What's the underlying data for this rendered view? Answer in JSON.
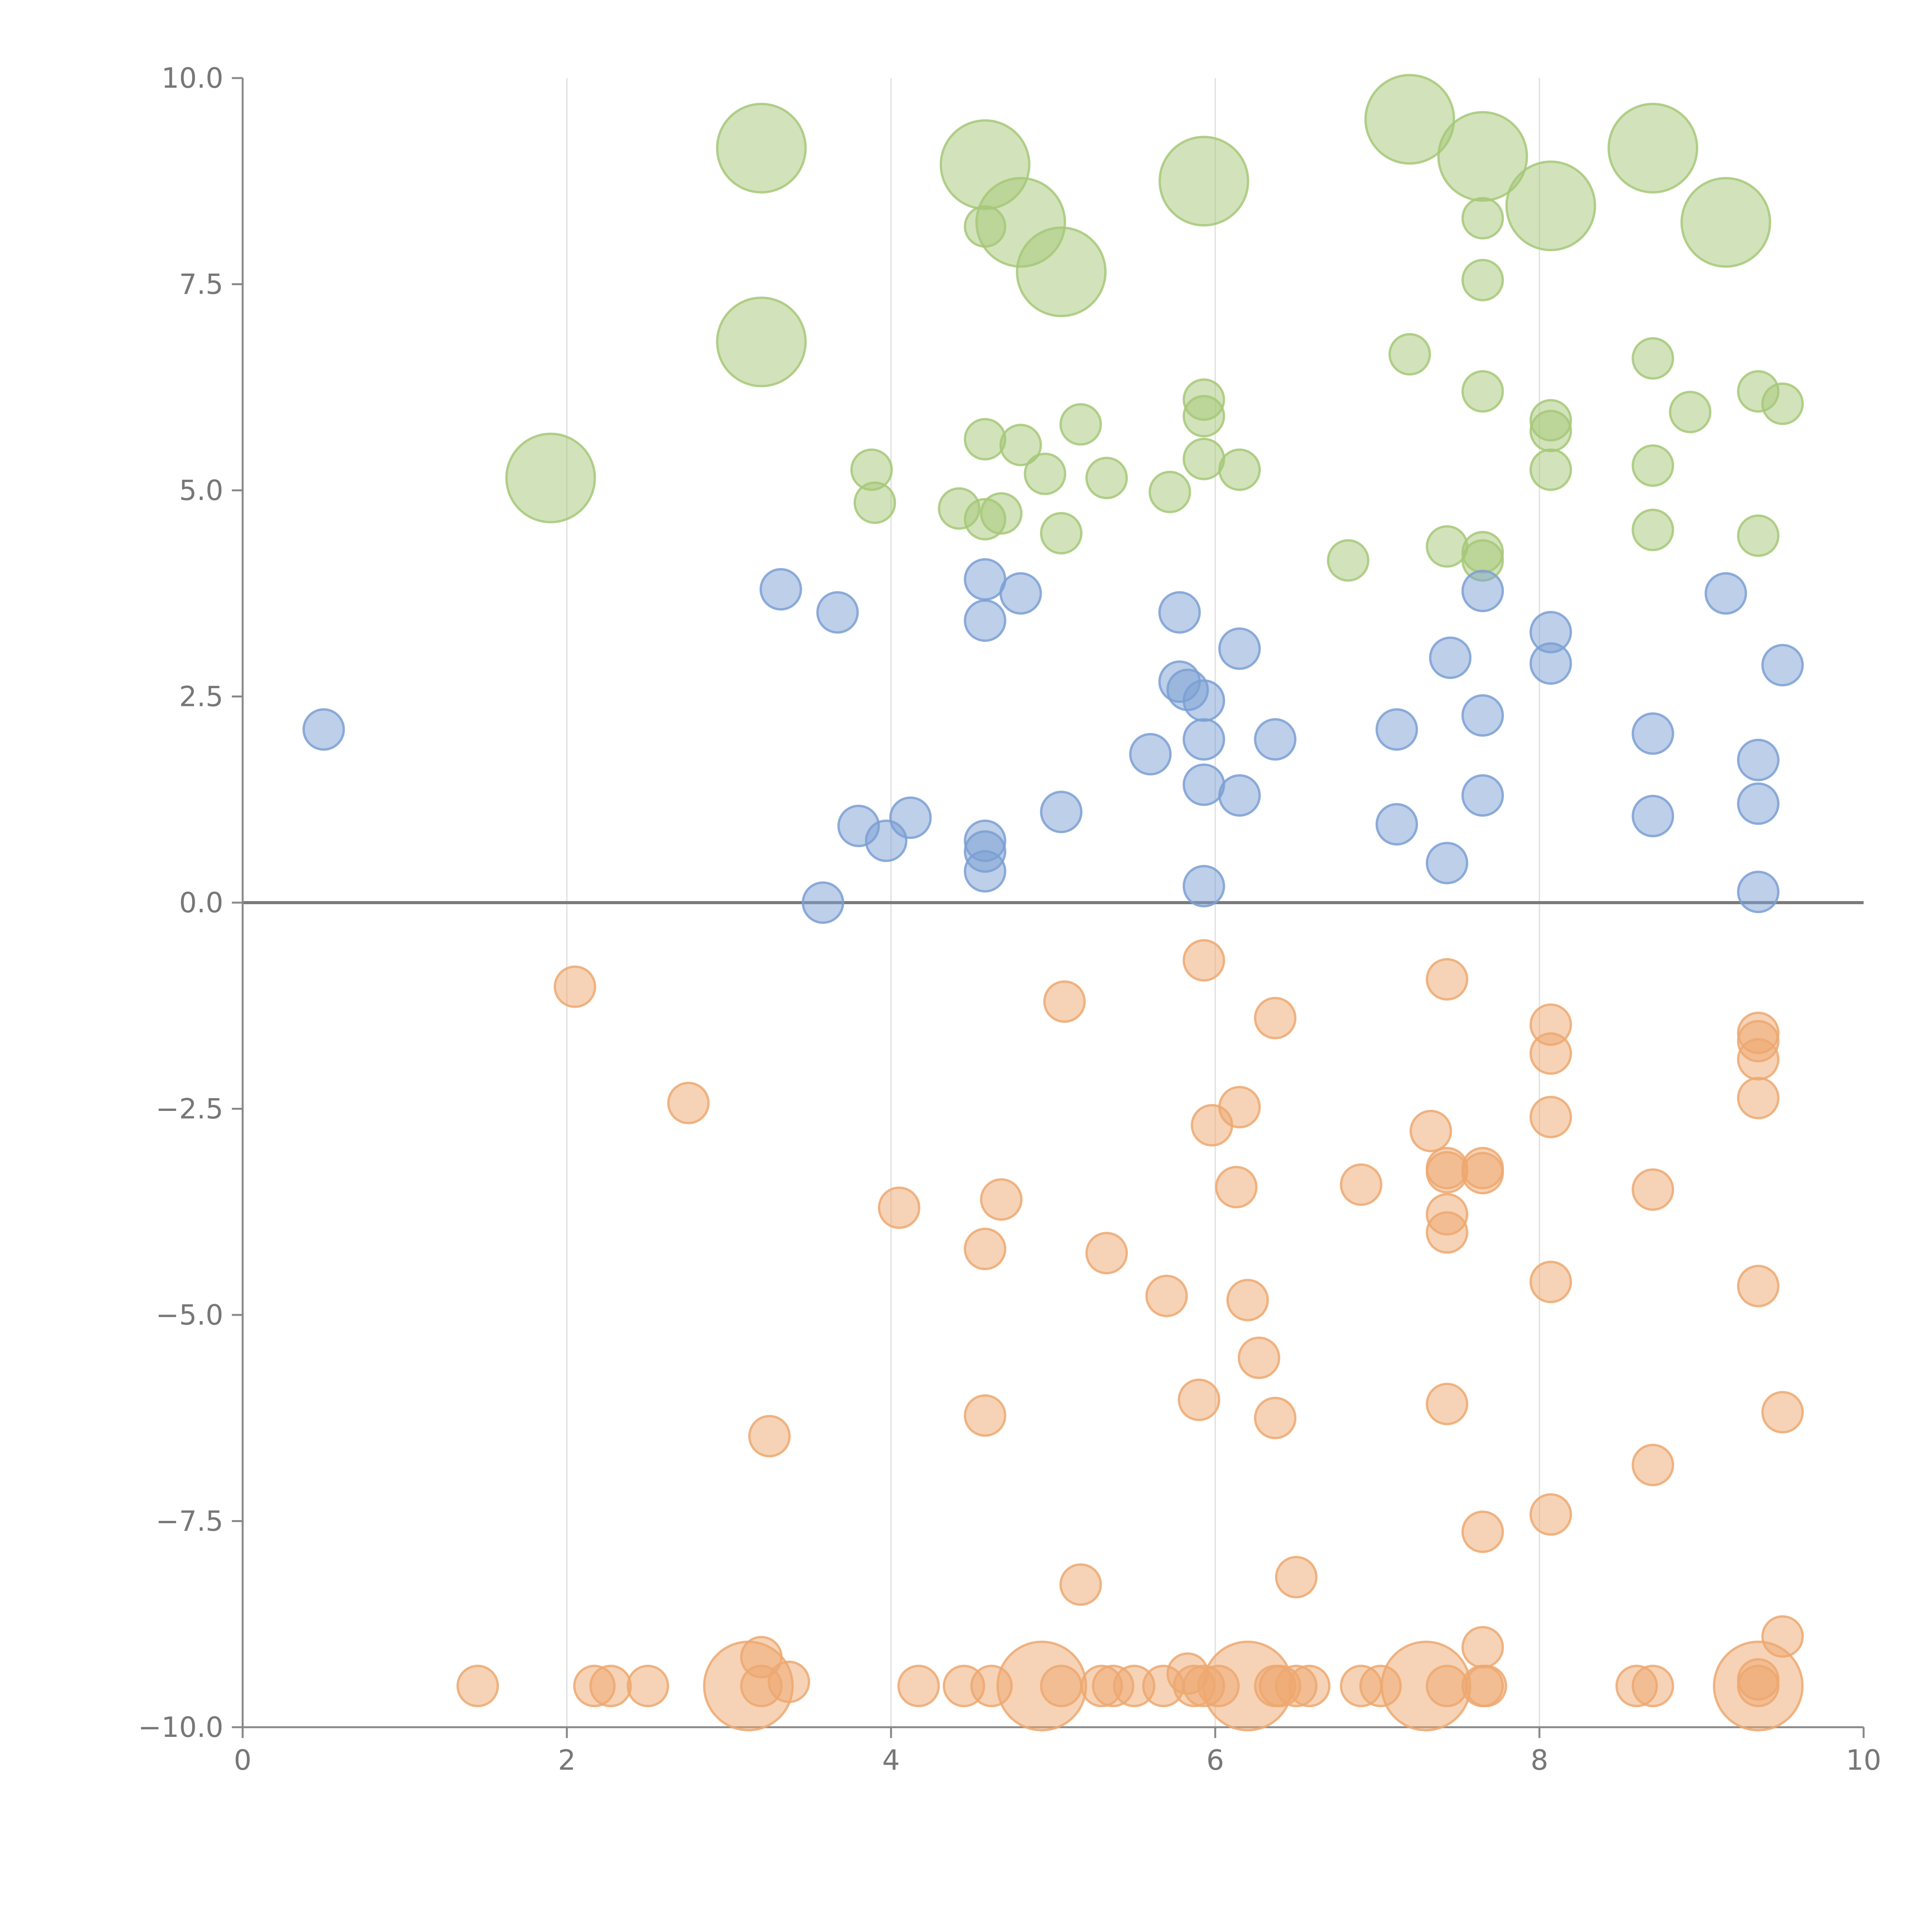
{
  "chart_data": {
    "type": "scatter",
    "title": "",
    "xlabel": "",
    "ylabel": "",
    "xlim": [
      0,
      10
    ],
    "ylim": [
      -10,
      10
    ],
    "x_ticks": [
      0,
      2,
      4,
      6,
      8,
      10
    ],
    "x_tick_labels": [
      "0",
      "2",
      "4",
      "6",
      "8",
      "10"
    ],
    "y_ticks": [
      10,
      7.5,
      5,
      2.5,
      0,
      -2.5,
      -5,
      -7.5,
      -10
    ],
    "y_tick_labels": [
      "10.0",
      "7.5",
      "5.0",
      "2.5",
      "0.0",
      "−2.5",
      "−5.0",
      "−7.5",
      "−10.0"
    ],
    "vertical_gridlines_at": [
      2,
      4,
      6,
      8
    ],
    "zero_line": 0,
    "series": [
      {
        "name": "green",
        "color": "#a6c878",
        "points": [
          {
            "x": 3.2,
            "y": 9.15,
            "s": 2.2
          },
          {
            "x": 4.58,
            "y": 8.95,
            "s": 2.2
          },
          {
            "x": 5.93,
            "y": 8.75,
            "s": 2.2
          },
          {
            "x": 7.2,
            "y": 9.5,
            "s": 2.2
          },
          {
            "x": 7.65,
            "y": 9.05,
            "s": 2.2
          },
          {
            "x": 8.7,
            "y": 9.15,
            "s": 2.2
          },
          {
            "x": 8.07,
            "y": 8.45,
            "s": 2.2
          },
          {
            "x": 9.15,
            "y": 8.25,
            "s": 2.2
          },
          {
            "x": 4.8,
            "y": 8.25,
            "s": 2.2
          },
          {
            "x": 5.05,
            "y": 7.65,
            "s": 2.2
          },
          {
            "x": 3.2,
            "y": 6.8,
            "s": 2.2
          },
          {
            "x": 1.9,
            "y": 5.15,
            "s": 2.2
          },
          {
            "x": 4.58,
            "y": 8.2,
            "s": 1
          },
          {
            "x": 7.65,
            "y": 8.3,
            "s": 1
          },
          {
            "x": 7.65,
            "y": 7.55,
            "s": 1
          },
          {
            "x": 7.2,
            "y": 6.65,
            "s": 1
          },
          {
            "x": 8.7,
            "y": 6.6,
            "s": 1
          },
          {
            "x": 7.65,
            "y": 6.2,
            "s": 1
          },
          {
            "x": 9.35,
            "y": 6.2,
            "s": 1
          },
          {
            "x": 9.5,
            "y": 6.05,
            "s": 1
          },
          {
            "x": 8.93,
            "y": 5.95,
            "s": 1
          },
          {
            "x": 5.93,
            "y": 6.1,
            "s": 1
          },
          {
            "x": 5.93,
            "y": 5.9,
            "s": 1
          },
          {
            "x": 5.17,
            "y": 5.8,
            "s": 1
          },
          {
            "x": 8.07,
            "y": 5.85,
            "s": 1
          },
          {
            "x": 8.07,
            "y": 5.72,
            "s": 1
          },
          {
            "x": 4.58,
            "y": 5.62,
            "s": 1
          },
          {
            "x": 4.8,
            "y": 5.55,
            "s": 1
          },
          {
            "x": 5.93,
            "y": 5.38,
            "s": 1
          },
          {
            "x": 6.15,
            "y": 5.25,
            "s": 1
          },
          {
            "x": 8.07,
            "y": 5.25,
            "s": 1
          },
          {
            "x": 8.7,
            "y": 5.3,
            "s": 1
          },
          {
            "x": 3.88,
            "y": 5.25,
            "s": 1
          },
          {
            "x": 4.95,
            "y": 5.2,
            "s": 1
          },
          {
            "x": 5.33,
            "y": 5.15,
            "s": 1
          },
          {
            "x": 5.72,
            "y": 4.98,
            "s": 1
          },
          {
            "x": 3.9,
            "y": 4.85,
            "s": 1
          },
          {
            "x": 4.42,
            "y": 4.78,
            "s": 1
          },
          {
            "x": 4.68,
            "y": 4.72,
            "s": 1
          },
          {
            "x": 4.58,
            "y": 4.65,
            "s": 1
          },
          {
            "x": 5.05,
            "y": 4.48,
            "s": 1
          },
          {
            "x": 8.7,
            "y": 4.52,
            "s": 1
          },
          {
            "x": 9.35,
            "y": 4.45,
            "s": 1
          },
          {
            "x": 7.43,
            "y": 4.32,
            "s": 1
          },
          {
            "x": 7.65,
            "y": 4.25,
            "s": 1
          },
          {
            "x": 7.65,
            "y": 4.15,
            "s": 1
          },
          {
            "x": 6.82,
            "y": 4.15,
            "s": 1
          }
        ]
      },
      {
        "name": "blue",
        "color": "#7b9fd4",
        "points": [
          {
            "x": 3.32,
            "y": 3.8,
            "s": 1
          },
          {
            "x": 3.67,
            "y": 3.52,
            "s": 1
          },
          {
            "x": 4.58,
            "y": 3.92,
            "s": 1
          },
          {
            "x": 4.8,
            "y": 3.75,
            "s": 1
          },
          {
            "x": 4.58,
            "y": 3.42,
            "s": 1
          },
          {
            "x": 5.78,
            "y": 3.52,
            "s": 1
          },
          {
            "x": 6.15,
            "y": 3.08,
            "s": 1
          },
          {
            "x": 7.65,
            "y": 3.78,
            "s": 1
          },
          {
            "x": 9.15,
            "y": 3.75,
            "s": 1
          },
          {
            "x": 8.07,
            "y": 3.28,
            "s": 1
          },
          {
            "x": 7.45,
            "y": 2.97,
            "s": 1
          },
          {
            "x": 8.07,
            "y": 2.9,
            "s": 1
          },
          {
            "x": 9.5,
            "y": 2.88,
            "s": 1
          },
          {
            "x": 5.78,
            "y": 2.68,
            "s": 1
          },
          {
            "x": 5.83,
            "y": 2.58,
            "s": 1
          },
          {
            "x": 5.93,
            "y": 2.45,
            "s": 1
          },
          {
            "x": 7.65,
            "y": 2.27,
            "s": 1
          },
          {
            "x": 0.5,
            "y": 2.1,
            "s": 1
          },
          {
            "x": 7.12,
            "y": 2.1,
            "s": 1
          },
          {
            "x": 8.7,
            "y": 2.05,
            "s": 1
          },
          {
            "x": 5.93,
            "y": 1.98,
            "s": 1
          },
          {
            "x": 6.37,
            "y": 1.98,
            "s": 1
          },
          {
            "x": 5.6,
            "y": 1.8,
            "s": 1
          },
          {
            "x": 9.35,
            "y": 1.73,
            "s": 1
          },
          {
            "x": 5.93,
            "y": 1.43,
            "s": 1
          },
          {
            "x": 6.15,
            "y": 1.3,
            "s": 1
          },
          {
            "x": 7.65,
            "y": 1.3,
            "s": 1
          },
          {
            "x": 9.35,
            "y": 1.2,
            "s": 1
          },
          {
            "x": 5.05,
            "y": 1.1,
            "s": 1
          },
          {
            "x": 4.12,
            "y": 1.03,
            "s": 1
          },
          {
            "x": 8.7,
            "y": 1.05,
            "s": 1
          },
          {
            "x": 3.8,
            "y": 0.93,
            "s": 1
          },
          {
            "x": 7.12,
            "y": 0.95,
            "s": 1
          },
          {
            "x": 3.97,
            "y": 0.75,
            "s": 1
          },
          {
            "x": 4.58,
            "y": 0.75,
            "s": 1
          },
          {
            "x": 4.58,
            "y": 0.62,
            "s": 1
          },
          {
            "x": 7.43,
            "y": 0.48,
            "s": 1
          },
          {
            "x": 4.58,
            "y": 0.38,
            "s": 1
          },
          {
            "x": 5.93,
            "y": 0.2,
            "s": 1
          },
          {
            "x": 9.35,
            "y": 0.13,
            "s": 1
          },
          {
            "x": 3.58,
            "y": 0.0,
            "s": 1
          }
        ]
      },
      {
        "name": "orange",
        "color": "#eda870",
        "points": [
          {
            "x": 5.93,
            "y": -0.7,
            "s": 1
          },
          {
            "x": 7.43,
            "y": -0.93,
            "s": 1
          },
          {
            "x": 2.05,
            "y": -1.02,
            "s": 1
          },
          {
            "x": 5.07,
            "y": -1.2,
            "s": 1
          },
          {
            "x": 6.37,
            "y": -1.4,
            "s": 1
          },
          {
            "x": 8.07,
            "y": -1.48,
            "s": 1
          },
          {
            "x": 9.35,
            "y": -1.58,
            "s": 1
          },
          {
            "x": 9.35,
            "y": -1.68,
            "s": 1
          },
          {
            "x": 8.07,
            "y": -1.83,
            "s": 1
          },
          {
            "x": 9.35,
            "y": -1.9,
            "s": 1
          },
          {
            "x": 9.35,
            "y": -2.37,
            "s": 1
          },
          {
            "x": 2.75,
            "y": -2.43,
            "s": 1
          },
          {
            "x": 6.15,
            "y": -2.48,
            "s": 1
          },
          {
            "x": 8.07,
            "y": -2.6,
            "s": 1
          },
          {
            "x": 5.98,
            "y": -2.7,
            "s": 1
          },
          {
            "x": 7.33,
            "y": -2.77,
            "s": 1
          },
          {
            "x": 7.43,
            "y": -3.22,
            "s": 1
          },
          {
            "x": 7.65,
            "y": -3.22,
            "s": 1
          },
          {
            "x": 7.65,
            "y": -3.28,
            "s": 1
          },
          {
            "x": 7.43,
            "y": -3.27,
            "s": 1
          },
          {
            "x": 6.9,
            "y": -3.42,
            "s": 1
          },
          {
            "x": 6.13,
            "y": -3.45,
            "s": 1
          },
          {
            "x": 8.7,
            "y": -3.48,
            "s": 1
          },
          {
            "x": 4.68,
            "y": -3.6,
            "s": 1
          },
          {
            "x": 4.05,
            "y": -3.7,
            "s": 1
          },
          {
            "x": 7.43,
            "y": -3.78,
            "s": 1
          },
          {
            "x": 7.43,
            "y": -4.0,
            "s": 1
          },
          {
            "x": 4.58,
            "y": -4.2,
            "s": 1
          },
          {
            "x": 5.33,
            "y": -4.25,
            "s": 1
          },
          {
            "x": 8.07,
            "y": -4.6,
            "s": 1
          },
          {
            "x": 9.35,
            "y": -4.65,
            "s": 1
          },
          {
            "x": 5.7,
            "y": -4.77,
            "s": 1
          },
          {
            "x": 6.2,
            "y": -4.82,
            "s": 1
          },
          {
            "x": 6.27,
            "y": -5.52,
            "s": 1
          },
          {
            "x": 5.9,
            "y": -6.03,
            "s": 1
          },
          {
            "x": 7.43,
            "y": -6.08,
            "s": 1
          },
          {
            "x": 9.5,
            "y": -6.18,
            "s": 1
          },
          {
            "x": 4.58,
            "y": -6.22,
            "s": 1
          },
          {
            "x": 6.37,
            "y": -6.25,
            "s": 1
          },
          {
            "x": 3.25,
            "y": -6.47,
            "s": 1
          },
          {
            "x": 8.7,
            "y": -6.82,
            "s": 1
          },
          {
            "x": 8.07,
            "y": -7.42,
            "s": 1
          },
          {
            "x": 7.65,
            "y": -7.63,
            "s": 1
          },
          {
            "x": 6.5,
            "y": -8.18,
            "s": 1
          },
          {
            "x": 5.17,
            "y": -8.27,
            "s": 1
          },
          {
            "x": 9.5,
            "y": -8.9,
            "s": 1
          },
          {
            "x": 7.65,
            "y": -9.03,
            "s": 1
          },
          {
            "x": 3.2,
            "y": -9.15,
            "s": 1
          },
          {
            "x": 3.37,
            "y": -9.45,
            "s": 1
          },
          {
            "x": 5.83,
            "y": -9.35,
            "s": 1
          },
          {
            "x": 9.35,
            "y": -9.42,
            "s": 1
          },
          {
            "x": 1.45,
            "y": -9.5,
            "s": 1
          },
          {
            "x": 2.17,
            "y": -9.5,
            "s": 1
          },
          {
            "x": 2.27,
            "y": -9.5,
            "s": 1
          },
          {
            "x": 2.5,
            "y": -9.5,
            "s": 1
          },
          {
            "x": 3.2,
            "y": -9.5,
            "s": 1
          },
          {
            "x": 4.17,
            "y": -9.5,
            "s": 1
          },
          {
            "x": 4.45,
            "y": -9.5,
            "s": 1
          },
          {
            "x": 4.62,
            "y": -9.5,
            "s": 1
          },
          {
            "x": 5.05,
            "y": -9.5,
            "s": 1
          },
          {
            "x": 5.3,
            "y": -9.5,
            "s": 1
          },
          {
            "x": 5.37,
            "y": -9.5,
            "s": 1
          },
          {
            "x": 5.5,
            "y": -9.5,
            "s": 1
          },
          {
            "x": 5.68,
            "y": -9.5,
            "s": 1
          },
          {
            "x": 5.87,
            "y": -9.5,
            "s": 1
          },
          {
            "x": 5.93,
            "y": -9.5,
            "s": 1
          },
          {
            "x": 6.02,
            "y": -9.5,
            "s": 1
          },
          {
            "x": 6.37,
            "y": -9.5,
            "s": 1
          },
          {
            "x": 6.4,
            "y": -9.5,
            "s": 1
          },
          {
            "x": 6.5,
            "y": -9.5,
            "s": 1
          },
          {
            "x": 6.58,
            "y": -9.5,
            "s": 1
          },
          {
            "x": 6.9,
            "y": -9.5,
            "s": 1
          },
          {
            "x": 7.02,
            "y": -9.5,
            "s": 1
          },
          {
            "x": 7.43,
            "y": -9.5,
            "s": 1
          },
          {
            "x": 7.65,
            "y": -9.5,
            "s": 1
          },
          {
            "x": 7.67,
            "y": -9.5,
            "s": 1
          },
          {
            "x": 8.6,
            "y": -9.5,
            "s": 1
          },
          {
            "x": 8.7,
            "y": -9.5,
            "s": 1
          },
          {
            "x": 9.35,
            "y": -9.5,
            "s": 1
          },
          {
            "x": 3.12,
            "y": -9.5,
            "s": 2.2
          },
          {
            "x": 4.93,
            "y": -9.5,
            "s": 2.2
          },
          {
            "x": 6.2,
            "y": -9.5,
            "s": 2.2
          },
          {
            "x": 7.3,
            "y": -9.5,
            "s": 2.2
          },
          {
            "x": 9.35,
            "y": -9.5,
            "s": 2.2
          }
        ]
      }
    ]
  }
}
